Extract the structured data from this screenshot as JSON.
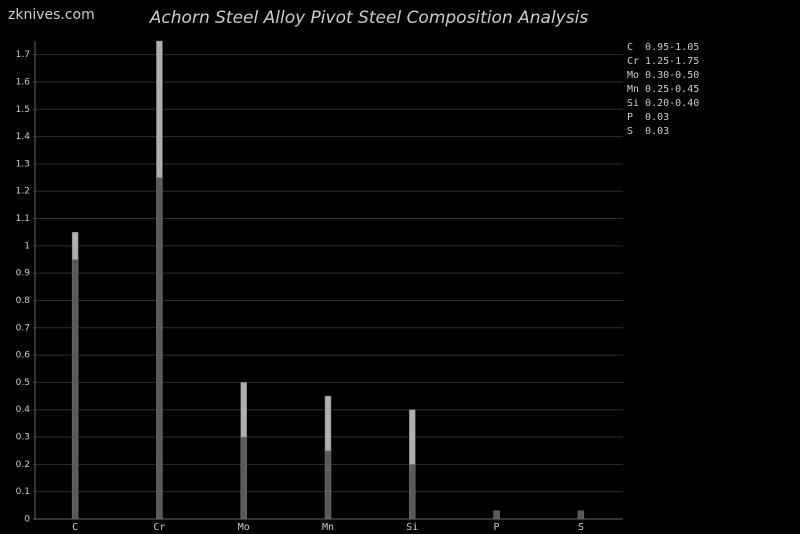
{
  "chart_data": {
    "type": "bar",
    "watermark": "zknives.com",
    "title": "Achorn Steel Alloy Pivot Steel Composition Analysis",
    "categories": [
      "C",
      "Cr",
      "Mo",
      "Mn",
      "Si",
      "P",
      "S"
    ],
    "series": [
      {
        "color": "#5a5a5a",
        "values": [
          0.95,
          1.25,
          0.3,
          0.25,
          0.2,
          0.03,
          0.03
        ]
      },
      {
        "color": "#b0b0b0",
        "values": [
          0.1,
          0.5,
          0.2,
          0.2,
          0.2,
          0,
          0
        ]
      }
    ],
    "legend_entries": [
      "C  0.95-1.05",
      "Cr 1.25-1.75",
      "Mo 0.30-0.50",
      "Mn 0.25-0.45",
      "Si 0.20-0.40",
      "P  0.03",
      "S  0.03"
    ],
    "ylim": [
      0,
      1.75
    ],
    "yticks": [
      0,
      0.1,
      0.2,
      0.3,
      0.4,
      0.5,
      0.6,
      0.7,
      0.8,
      0.9,
      1,
      1.1,
      1.2,
      1.3,
      1.4,
      1.5,
      1.6,
      1.7
    ],
    "grid": true
  }
}
